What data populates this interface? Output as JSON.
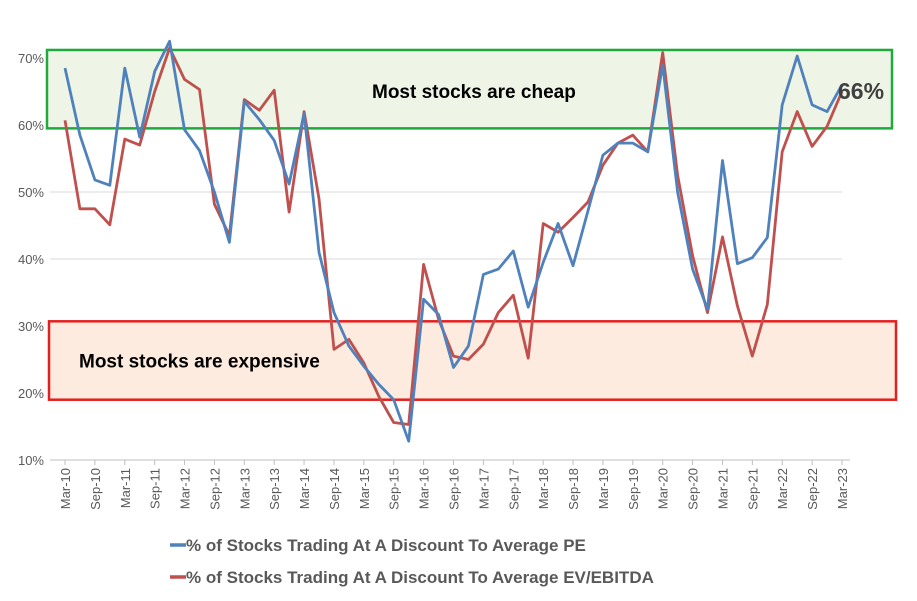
{
  "chart_data": {
    "type": "line",
    "ylim": [
      10,
      70
    ],
    "y_ticks": [
      "10%",
      "20%",
      "30%",
      "40%",
      "50%",
      "60%",
      "70%"
    ],
    "x_tick_labels": [
      "Mar-10",
      "Sep-10",
      "Mar-11",
      "Sep-11",
      "Mar-12",
      "Sep-12",
      "Mar-13",
      "Sep-13",
      "Mar-14",
      "Sep-14",
      "Mar-15",
      "Sep-15",
      "Mar-16",
      "Sep-16",
      "Mar-17",
      "Sep-17",
      "Mar-18",
      "Sep-18",
      "Mar-19",
      "Sep-19",
      "Mar-20",
      "Sep-20",
      "Mar-21",
      "Sep-21",
      "Mar-22",
      "Sep-22",
      "Mar-23"
    ],
    "grid": true,
    "bands": [
      {
        "label": "Most stocks are cheap",
        "from": 59.5,
        "to": 71.2,
        "border": "#1faa3c",
        "fill": "#eef5e6"
      },
      {
        "label": "Most stocks are expensive",
        "from": 19.0,
        "to": 30.7,
        "border": "#e41f1f",
        "fill": "#fcebde"
      }
    ],
    "end_label": "66%",
    "series": [
      {
        "name": "% of Stocks Trading At A Discount To Average PE",
        "color": "#4f81bd",
        "values": [
          68.5,
          58.5,
          51.8,
          51.0,
          68.5,
          58.2,
          68.0,
          72.5,
          59.3,
          56.2,
          50.0,
          42.5,
          63.5,
          60.8,
          57.7,
          51.2,
          61.7,
          41.0,
          32.0,
          27.0,
          24.0,
          21.3,
          19.0,
          12.8,
          34.0,
          31.7,
          23.8,
          27.0,
          37.7,
          38.5,
          41.2,
          32.8,
          39.5,
          45.3,
          39.0,
          47.2,
          55.5,
          57.3,
          57.3,
          56.0,
          69.0,
          50.0,
          38.5,
          32.5,
          54.7,
          39.3,
          40.2,
          43.2,
          63.0,
          70.3,
          63.0,
          62.0,
          66.0
        ]
      },
      {
        "name": "% of Stocks Trading At A Discount To Average EV/EBITDA",
        "color": "#c0504d",
        "values": [
          60.7,
          47.5,
          47.5,
          45.1,
          57.9,
          57.0,
          65.0,
          71.5,
          66.8,
          65.3,
          48.2,
          43.5,
          63.8,
          62.2,
          65.2,
          47.0,
          62.0,
          49.0,
          26.5,
          28.0,
          24.5,
          19.5,
          15.6,
          15.3,
          39.2,
          31.0,
          25.5,
          25.0,
          27.3,
          32.0,
          34.6,
          25.2,
          45.3,
          44.0,
          46.2,
          48.5,
          54.0,
          57.3,
          58.5,
          56.0,
          70.8,
          52.5,
          40.5,
          32.0,
          43.3,
          33.0,
          25.5,
          33.2,
          56.0,
          62.0,
          56.8,
          59.8,
          65.0
        ]
      }
    ]
  }
}
